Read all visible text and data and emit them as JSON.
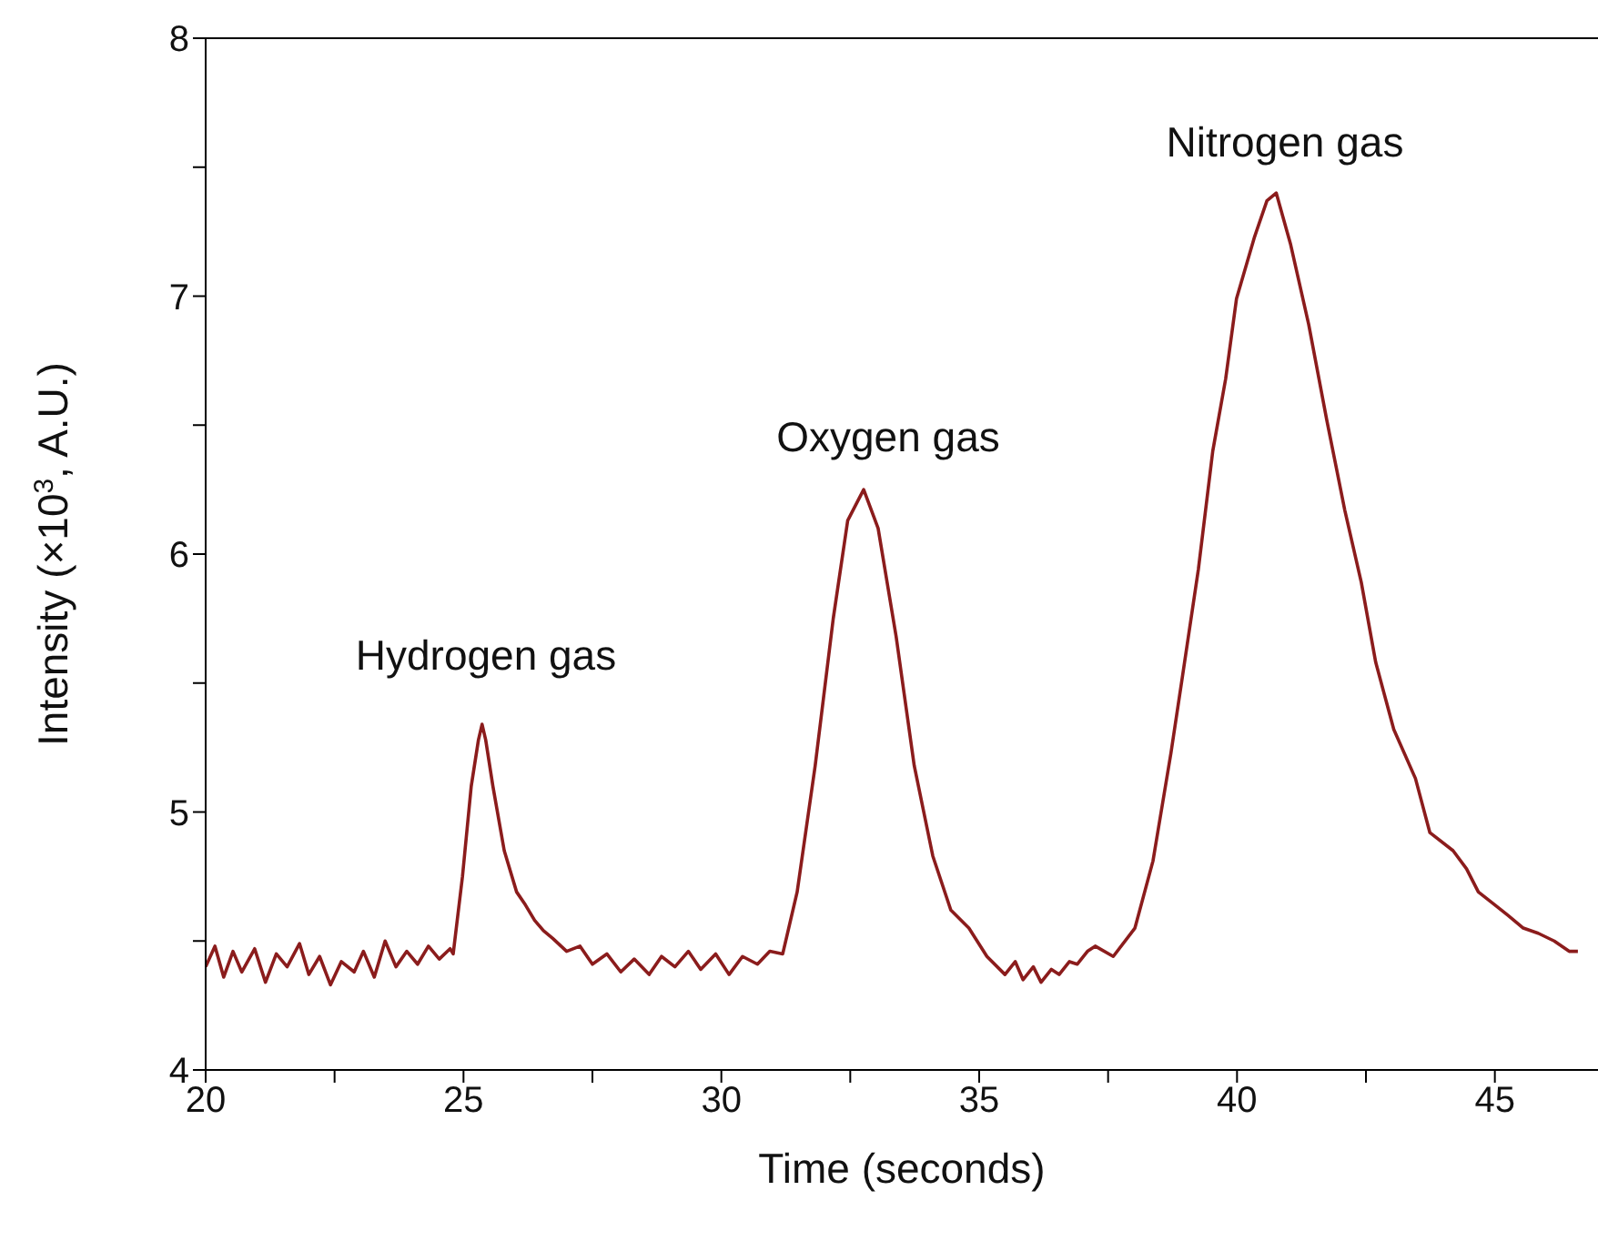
{
  "chart_data": {
    "type": "line",
    "xlabel": "Time (seconds)",
    "ylabel": "Intensity (×10$^{3}$, A.U.)",
    "xlim": [
      20,
      47
    ],
    "xticks": [
      20,
      {
        "value": 22.5,
        "label": null
      },
      25,
      {
        "value": 27.5,
        "label": null
      },
      30,
      {
        "value": 32.5,
        "label": null
      },
      35,
      {
        "value": 37.5,
        "label": null
      },
      40,
      {
        "value": 42.5,
        "label": null
      },
      45
    ],
    "ylim": [
      4,
      8
    ],
    "yticks": [
      4,
      {
        "value": 4.5,
        "label": null
      },
      5,
      {
        "value": 5.5,
        "label": null
      },
      6,
      {
        "value": 6.5,
        "label": null
      },
      7,
      {
        "value": 7.5,
        "label": null
      },
      8
    ],
    "marker": "none",
    "line_style": "solid",
    "annotations": [
      "Hydrogen gas",
      "Oxygen gas",
      "Nitrogen gas"
    ],
    "series": [
      {
        "color": "#8b1c1c",
        "x": [
          20,
          20.18,
          20.35,
          20.53,
          20.7,
          20.95,
          21.16,
          21.37,
          21.58,
          21.82,
          22,
          22.21,
          22.42,
          22.63,
          22.88,
          23.06,
          23.27,
          23.48,
          23.69,
          23.9,
          24.11,
          24.32,
          24.53,
          24.74,
          24.8,
          24.98,
          25.15,
          25.29,
          25.36,
          25.43,
          25.57,
          25.79,
          26.03,
          26.2,
          26.38,
          26.55,
          26.73,
          27,
          27.26,
          27.5,
          27.78,
          28.05,
          28.31,
          28.6,
          28.84,
          29.1,
          29.36,
          29.6,
          29.89,
          30.15,
          30.41,
          30.7,
          30.94,
          31.19,
          31.47,
          31.82,
          32.17,
          32.45,
          32.76,
          33.04,
          33.39,
          33.74,
          34.1,
          34.45,
          34.8,
          35.15,
          35.5,
          35.7,
          35.85,
          36.05,
          36.2,
          36.4,
          36.55,
          36.75,
          36.9,
          37.1,
          37.25,
          37.6,
          38.02,
          38.37,
          38.72,
          38.93,
          39.25,
          39.53,
          39.78,
          39.99,
          40.34,
          40.58,
          40.76,
          41.04,
          41.39,
          41.74,
          42.09,
          42.41,
          42.69,
          43.04,
          43.46,
          43.74,
          44.19,
          44.45,
          44.68,
          45,
          45.25,
          45.55,
          45.84,
          46.15,
          46.44,
          46.61
        ],
        "values": [
          4.4,
          4.48,
          4.36,
          4.46,
          4.38,
          4.47,
          4.34,
          4.45,
          4.4,
          4.49,
          4.37,
          4.44,
          4.33,
          4.42,
          4.38,
          4.46,
          4.36,
          4.5,
          4.4,
          4.46,
          4.41,
          4.48,
          4.43,
          4.47,
          4.45,
          4.75,
          5.1,
          5.28,
          5.34,
          5.28,
          5.1,
          4.85,
          4.69,
          4.64,
          4.58,
          4.54,
          4.51,
          4.46,
          4.48,
          4.41,
          4.45,
          4.38,
          4.43,
          4.37,
          4.44,
          4.4,
          4.46,
          4.39,
          4.45,
          4.37,
          4.44,
          4.41,
          4.46,
          4.45,
          4.69,
          5.18,
          5.75,
          6.13,
          6.25,
          6.1,
          5.68,
          5.18,
          4.83,
          4.62,
          4.55,
          4.44,
          4.37,
          4.42,
          4.35,
          4.4,
          4.34,
          4.39,
          4.37,
          4.42,
          4.41,
          4.46,
          4.48,
          4.44,
          4.55,
          4.81,
          5.23,
          5.51,
          5.94,
          6.4,
          6.68,
          6.99,
          7.23,
          7.37,
          7.4,
          7.2,
          6.89,
          6.52,
          6.17,
          5.89,
          5.58,
          5.32,
          5.13,
          4.92,
          4.85,
          4.78,
          4.69,
          4.64,
          4.6,
          4.55,
          4.53,
          4.5,
          4.46,
          4.46
        ]
      }
    ]
  }
}
